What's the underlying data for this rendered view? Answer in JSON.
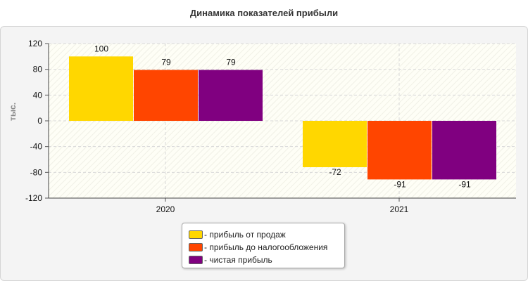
{
  "chart_data": {
    "type": "bar",
    "title": "Динамика показателей прибыли",
    "ylabel": "тыс.",
    "xlabel": "",
    "categories": [
      "2020",
      "2021"
    ],
    "ylim": [
      -120,
      120
    ],
    "yticks": [
      120,
      80,
      40,
      0,
      -40,
      -80,
      -120
    ],
    "grid": true,
    "legend_position": "bottom",
    "series": [
      {
        "name": "прибыль от продаж",
        "values": [
          100,
          -72
        ],
        "color": "#FFD700"
      },
      {
        "name": "прибыль до налогообложения",
        "values": [
          79,
          -91
        ],
        "color": "#FF4500"
      },
      {
        "name": "чистая прибыль",
        "values": [
          79,
          -91
        ],
        "color": "#800080"
      }
    ]
  },
  "legend": {
    "items": [
      {
        "label": "- прибыль от продаж",
        "color": "#FFD700"
      },
      {
        "label": "- прибыль до налогообложения",
        "color": "#FF4500"
      },
      {
        "label": "- чистая прибыль",
        "color": "#800080"
      }
    ]
  }
}
